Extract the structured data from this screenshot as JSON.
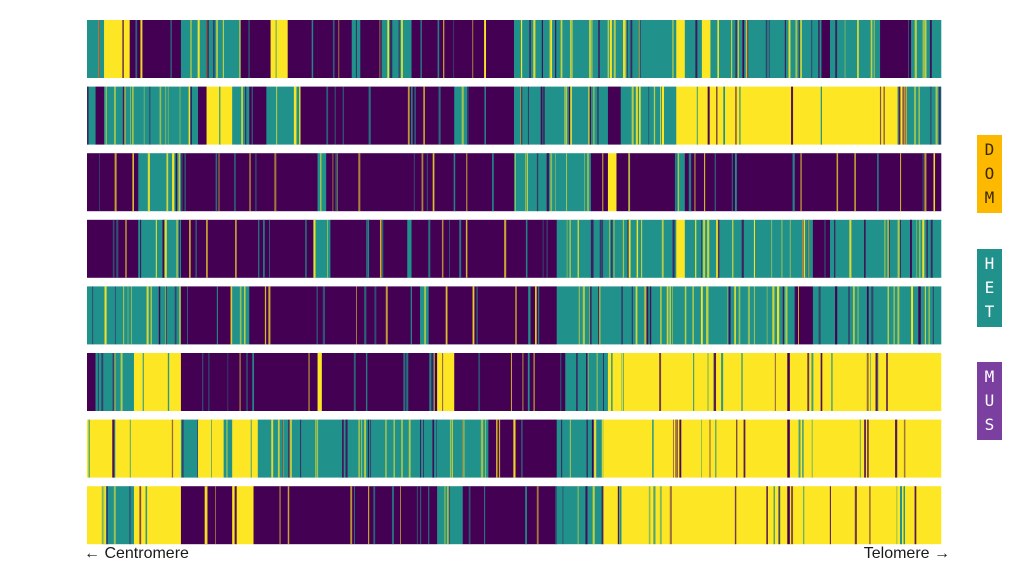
{
  "colors": {
    "DOM": "#FDE725",
    "HET": "#21918C",
    "MUS": "#440154"
  },
  "axis": {
    "left_label": "← Centromere",
    "right_label": "Telomere →"
  },
  "legend": [
    {
      "key": "DOM",
      "letters": [
        "D",
        "O",
        "M"
      ],
      "bg": "#FDB800",
      "fg": "#3a2a00"
    },
    {
      "key": "HET",
      "letters": [
        "H",
        "E",
        "T"
      ],
      "bg": "#21918C",
      "fg": "#ffffff"
    },
    {
      "key": "MUS",
      "letters": [
        "M",
        "U",
        "S"
      ],
      "bg": "#7B3FA0",
      "fg": "#ffffff"
    }
  ],
  "chart_data": {
    "type": "heatmap",
    "title": "",
    "xlabel": "",
    "ylabel": "",
    "x_range": [
      0,
      1
    ],
    "categories": [
      "DOM",
      "HET",
      "MUS"
    ],
    "tracks": [
      {
        "segments": [
          [
            0.0,
            0.02,
            "HET"
          ],
          [
            0.02,
            0.05,
            "DOM"
          ],
          [
            0.05,
            0.11,
            "MUS"
          ],
          [
            0.11,
            0.18,
            "HET"
          ],
          [
            0.18,
            0.215,
            "MUS"
          ],
          [
            0.215,
            0.235,
            "DOM"
          ],
          [
            0.235,
            0.27,
            "MUS"
          ],
          [
            0.27,
            0.31,
            "MUS"
          ],
          [
            0.31,
            0.32,
            "HET"
          ],
          [
            0.32,
            0.345,
            "MUS"
          ],
          [
            0.345,
            0.38,
            "HET"
          ],
          [
            0.38,
            0.5,
            "MUS"
          ],
          [
            0.5,
            0.69,
            "HET"
          ],
          [
            0.69,
            0.7,
            "DOM"
          ],
          [
            0.7,
            0.72,
            "HET"
          ],
          [
            0.72,
            0.73,
            "DOM"
          ],
          [
            0.73,
            0.86,
            "HET"
          ],
          [
            0.86,
            0.87,
            "MUS"
          ],
          [
            0.87,
            0.93,
            "HET"
          ],
          [
            0.93,
            0.965,
            "MUS"
          ],
          [
            0.965,
            1.0,
            "HET"
          ]
        ]
      },
      {
        "segments": [
          [
            0.0,
            0.01,
            "HET"
          ],
          [
            0.01,
            0.02,
            "MUS"
          ],
          [
            0.02,
            0.13,
            "HET"
          ],
          [
            0.13,
            0.14,
            "MUS"
          ],
          [
            0.14,
            0.17,
            "DOM"
          ],
          [
            0.17,
            0.19,
            "HET"
          ],
          [
            0.19,
            0.21,
            "MUS"
          ],
          [
            0.21,
            0.25,
            "HET"
          ],
          [
            0.25,
            0.43,
            "MUS"
          ],
          [
            0.43,
            0.445,
            "HET"
          ],
          [
            0.445,
            0.5,
            "MUS"
          ],
          [
            0.5,
            0.61,
            "HET"
          ],
          [
            0.61,
            0.625,
            "MUS"
          ],
          [
            0.625,
            0.69,
            "HET"
          ],
          [
            0.69,
            0.96,
            "DOM"
          ],
          [
            0.96,
            1.0,
            "HET"
          ]
        ]
      },
      {
        "segments": [
          [
            0.0,
            0.06,
            "MUS"
          ],
          [
            0.06,
            0.11,
            "HET"
          ],
          [
            0.11,
            0.27,
            "MUS"
          ],
          [
            0.27,
            0.28,
            "HET"
          ],
          [
            0.28,
            0.5,
            "MUS"
          ],
          [
            0.5,
            0.59,
            "HET"
          ],
          [
            0.59,
            0.61,
            "MUS"
          ],
          [
            0.61,
            0.62,
            "DOM"
          ],
          [
            0.62,
            0.69,
            "MUS"
          ],
          [
            0.69,
            0.7,
            "HET"
          ],
          [
            0.7,
            1.0,
            "MUS"
          ]
        ]
      },
      {
        "segments": [
          [
            0.0,
            0.06,
            "MUS"
          ],
          [
            0.06,
            0.11,
            "HET"
          ],
          [
            0.11,
            0.265,
            "MUS"
          ],
          [
            0.265,
            0.285,
            "HET"
          ],
          [
            0.285,
            0.375,
            "MUS"
          ],
          [
            0.375,
            0.38,
            "HET"
          ],
          [
            0.38,
            0.55,
            "MUS"
          ],
          [
            0.55,
            0.69,
            "HET"
          ],
          [
            0.69,
            0.7,
            "DOM"
          ],
          [
            0.7,
            0.85,
            "HET"
          ],
          [
            0.85,
            0.87,
            "MUS"
          ],
          [
            0.87,
            1.0,
            "HET"
          ]
        ]
      },
      {
        "segments": [
          [
            0.0,
            0.11,
            "HET"
          ],
          [
            0.11,
            0.17,
            "MUS"
          ],
          [
            0.17,
            0.19,
            "HET"
          ],
          [
            0.19,
            0.39,
            "MUS"
          ],
          [
            0.39,
            0.4,
            "HET"
          ],
          [
            0.4,
            0.55,
            "MUS"
          ],
          [
            0.55,
            0.83,
            "HET"
          ],
          [
            0.83,
            0.85,
            "MUS"
          ],
          [
            0.85,
            1.0,
            "HET"
          ]
        ]
      },
      {
        "segments": [
          [
            0.0,
            0.01,
            "MUS"
          ],
          [
            0.01,
            0.055,
            "HET"
          ],
          [
            0.055,
            0.11,
            "DOM"
          ],
          [
            0.11,
            0.185,
            "MUS"
          ],
          [
            0.185,
            0.24,
            "MUS"
          ],
          [
            0.24,
            0.27,
            "MUS"
          ],
          [
            0.27,
            0.275,
            "DOM"
          ],
          [
            0.275,
            0.41,
            "MUS"
          ],
          [
            0.41,
            0.43,
            "DOM"
          ],
          [
            0.43,
            0.445,
            "MUS"
          ],
          [
            0.445,
            0.56,
            "MUS"
          ],
          [
            0.56,
            0.61,
            "HET"
          ],
          [
            0.61,
            0.82,
            "DOM"
          ],
          [
            0.82,
            0.823,
            "MUS"
          ],
          [
            0.823,
            1.0,
            "DOM"
          ]
        ]
      },
      {
        "segments": [
          [
            0.0,
            0.11,
            "DOM"
          ],
          [
            0.11,
            0.13,
            "HET"
          ],
          [
            0.13,
            0.16,
            "DOM"
          ],
          [
            0.16,
            0.17,
            "HET"
          ],
          [
            0.17,
            0.2,
            "DOM"
          ],
          [
            0.2,
            0.43,
            "HET"
          ],
          [
            0.43,
            0.47,
            "HET"
          ],
          [
            0.47,
            0.55,
            "MUS"
          ],
          [
            0.55,
            0.605,
            "HET"
          ],
          [
            0.605,
            0.82,
            "DOM"
          ],
          [
            0.82,
            0.823,
            "MUS"
          ],
          [
            0.823,
            1.0,
            "DOM"
          ]
        ]
      },
      {
        "segments": [
          [
            0.0,
            0.02,
            "DOM"
          ],
          [
            0.02,
            0.055,
            "HET"
          ],
          [
            0.055,
            0.11,
            "DOM"
          ],
          [
            0.11,
            0.17,
            "MUS"
          ],
          [
            0.17,
            0.195,
            "DOM"
          ],
          [
            0.195,
            0.41,
            "MUS"
          ],
          [
            0.41,
            0.44,
            "HET"
          ],
          [
            0.44,
            0.55,
            "MUS"
          ],
          [
            0.55,
            0.605,
            "HET"
          ],
          [
            0.605,
            0.82,
            "DOM"
          ],
          [
            0.82,
            0.823,
            "MUS"
          ],
          [
            0.823,
            1.0,
            "DOM"
          ]
        ]
      }
    ],
    "grid": false
  }
}
